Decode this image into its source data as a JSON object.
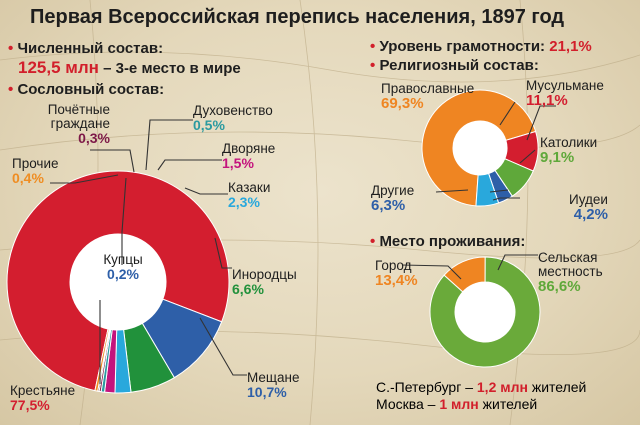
{
  "title": "Первая Всероссийская перепись населения, 1897 год",
  "bullet": "•",
  "population": {
    "label": "Численный состав:",
    "value": "125,5 млн",
    "suffix": " – 3-е место в мире"
  },
  "literacy": {
    "label": "Уровень грамотности:",
    "value": "21,1%"
  },
  "estate_header": "Сословный состав:",
  "religion_header": "Религиозный состав:",
  "residence_header": "Место проживания:",
  "cities": {
    "spb_city": "С.-Петербург – ",
    "spb_value": "1,2 млн",
    "spb_unit": " жителей",
    "msk_city": "Москва – ",
    "msk_value": "1 млн",
    "msk_unit": " жителей"
  },
  "chart_data": [
    {
      "type": "pie",
      "title": "Сословный состав:",
      "categories": [
        "Крестьяне",
        "Мещане",
        "Инородцы",
        "Казаки",
        "Дворяне",
        "Духовенство",
        "Почётные граждане",
        "Купцы",
        "Прочие"
      ],
      "values": [
        77.5,
        10.7,
        6.6,
        2.3,
        1.5,
        0.5,
        0.3,
        0.2,
        0.4
      ],
      "labels": [
        "77,5%",
        "10,7%",
        "6,6%",
        "2,3%",
        "1,5%",
        "0,5%",
        "0,3%",
        "0,2%",
        "0,4%"
      ],
      "colors": [
        "#d31e2f",
        "#2e5fa8",
        "#21913b",
        "#29a8dc",
        "#c4147d",
        "#2b9aa0",
        "#7d1948",
        "#5a3a2a",
        "#ef8d22"
      ]
    },
    {
      "type": "pie",
      "title": "Религиозный состав:",
      "categories": [
        "Православные",
        "Мусульмане",
        "Католики",
        "Иудеи",
        "Другие"
      ],
      "values": [
        69.3,
        11.1,
        9.1,
        4.2,
        6.3
      ],
      "labels": [
        "69,3%",
        "11,1%",
        "9,1%",
        "4,2%",
        "6,3%"
      ],
      "colors": [
        "#ef8522",
        "#d31e2f",
        "#5fa83a",
        "#2e5fa8",
        "#29a8dc"
      ]
    },
    {
      "type": "pie",
      "title": "Место проживания:",
      "categories": [
        "Город",
        "Сельская местность"
      ],
      "values": [
        13.4,
        86.6
      ],
      "labels": [
        "13,4%",
        "86,6%"
      ],
      "colors": [
        "#ef8522",
        "#6aaa3a"
      ]
    }
  ]
}
